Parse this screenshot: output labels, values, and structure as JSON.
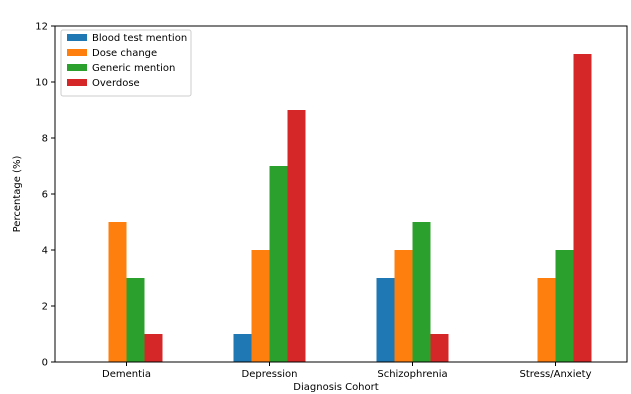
{
  "chart_data": {
    "type": "bar",
    "categories": [
      "Dementia",
      "Depression",
      "Schizophrenia",
      "Stress/Anxiety"
    ],
    "series": [
      {
        "name": "Blood test mention",
        "color": "#1f77b4",
        "values": [
          0,
          1,
          3,
          0
        ]
      },
      {
        "name": "Dose change",
        "color": "#ff7f0e",
        "values": [
          5,
          4,
          4,
          3
        ]
      },
      {
        "name": "Generic mention",
        "color": "#2ca02c",
        "values": [
          3,
          7,
          5,
          4
        ]
      },
      {
        "name": "Overdose",
        "color": "#d62728",
        "values": [
          1,
          9,
          1,
          11
        ]
      }
    ],
    "xlabel": "Diagnosis Cohort",
    "ylabel": "Percentage (%)",
    "ylim": [
      0,
      12
    ],
    "yticks": [
      0,
      2,
      4,
      6,
      8,
      10,
      12
    ],
    "grid": false,
    "legend_position": "top-left"
  }
}
